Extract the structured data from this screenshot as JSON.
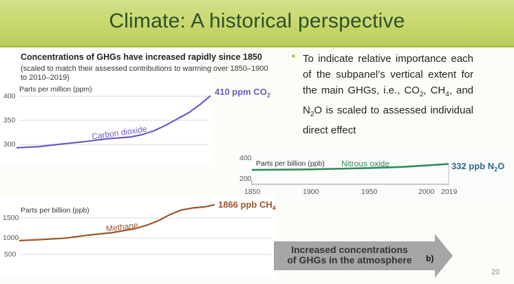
{
  "slide": {
    "title": "Climate: A historical perspective",
    "page_number": "20",
    "bullet": {
      "pre_co2": "To indicate relative importance each of the subpanel’s vertical extent for the main GHGs, i.e., CO",
      "sub_2a": "2",
      "mid_ch4": ", CH",
      "sub_4": "4",
      "mid_n2o": ", and N",
      "sub_2b": "2",
      "post": "O is scaled to assessed individual direct effect"
    }
  },
  "figure": {
    "heading": "Concentrations of GHGs have increased rapidly since 1850",
    "subheading_line1": "(scaled to match their assessed contributions to warming over 1850–1900",
    "subheading_line2": "to 2010–2019)",
    "arrow_line1": "Increased concentrations",
    "arrow_line2": "of GHGs in the atmosphere",
    "panel_letter": "b)",
    "colors": {
      "co2": "#6b5bc7",
      "n2o": "#2f8a5e",
      "ch4": "#9b5428"
    }
  },
  "co2": {
    "unit_label": "Parts per million (ppm)",
    "name": "Carbon dioxide",
    "end_value": "410 ppm CO",
    "end_sub": "2",
    "ticks": [
      "400",
      "350",
      "300"
    ]
  },
  "n2o": {
    "unit_label": "Parts per billion (ppb)",
    "name": "Nitrous oxide",
    "end_value": "332 ppb N",
    "end_sub": "2",
    "end_tail": "O",
    "ticks": [
      "400",
      "200"
    ],
    "x_ticks": [
      "1850",
      "1900",
      "1950",
      "2000",
      "2019"
    ]
  },
  "ch4": {
    "unit_label": "Parts per billion (ppb)",
    "name": "Methane",
    "end_value": "1866 ppb CH",
    "end_sub": "4",
    "ticks": [
      "1500",
      "1000",
      "500"
    ]
  },
  "chart_data": [
    {
      "type": "line",
      "title": "",
      "ylabel": "Parts per million (ppm)",
      "xlim": [
        1850,
        2019
      ],
      "ylim": [
        270,
        420
      ],
      "x": [
        1850,
        1870,
        1890,
        1910,
        1930,
        1950,
        1960,
        1970,
        1980,
        1990,
        2000,
        2010,
        2019
      ],
      "series": [
        {
          "name": "Carbon dioxide",
          "values": [
            285,
            288,
            294,
            300,
            307,
            311,
            317,
            326,
            339,
            354,
            369,
            389,
            410
          ]
        }
      ]
    },
    {
      "type": "line",
      "title": "",
      "ylabel": "Parts per billion (ppb)",
      "xlim": [
        1850,
        2019
      ],
      "ylim": [
        150,
        420
      ],
      "x": [
        1850,
        1900,
        1950,
        1980,
        2000,
        2019
      ],
      "series": [
        {
          "name": "Nitrous oxide",
          "values": [
            270,
            276,
            289,
            301,
            316,
            332
          ]
        }
      ]
    },
    {
      "type": "line",
      "title": "",
      "ylabel": "Parts per billion (ppb)",
      "xlim": [
        1850,
        2019
      ],
      "ylim": [
        400,
        1900
      ],
      "x": [
        1850,
        1870,
        1890,
        1910,
        1930,
        1950,
        1960,
        1970,
        1980,
        1990,
        2000,
        2010,
        2019
      ],
      "series": [
        {
          "name": "Methane",
          "values": [
            808,
            840,
            880,
            970,
            1040,
            1160,
            1260,
            1390,
            1570,
            1710,
            1770,
            1800,
            1866
          ]
        }
      ]
    }
  ]
}
